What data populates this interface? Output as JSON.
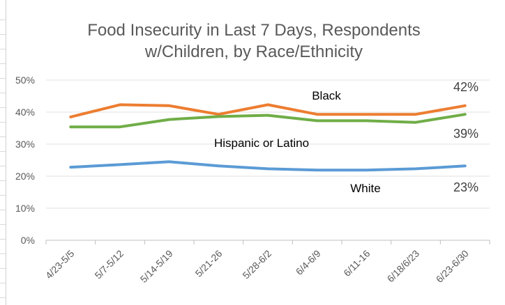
{
  "chart_data": {
    "type": "line",
    "title_line1": "Food Insecurity in Last 7 Days, Respondents",
    "title_line2": "w/Children, by Race/Ethnicity",
    "xlabel": "",
    "ylabel": "",
    "categories": [
      "4/23-5/5",
      "5/7-5/12",
      "5/14-5/19",
      "5/21-26",
      "5/28-6/2",
      "6/4-6/9",
      "6/11-16",
      "6/18/6/23",
      "6/23-6/30"
    ],
    "ylim": [
      0,
      50
    ],
    "yticks": [
      "0%",
      "10%",
      "20%",
      "30%",
      "40%",
      "50%"
    ],
    "grid": true,
    "legend": "none",
    "series": [
      {
        "name": "Black",
        "color": "#ed7d31",
        "values": [
          38.5,
          42.3,
          42.0,
          39.3,
          42.3,
          39.3,
          39.3,
          39.3,
          42.0
        ],
        "end_label": "42%"
      },
      {
        "name": "Hispanic or Latino",
        "color": "#70ad47",
        "values": [
          35.4,
          35.4,
          37.7,
          38.6,
          39.0,
          37.3,
          37.3,
          36.8,
          39.3
        ],
        "end_label": "39%"
      },
      {
        "name": "White",
        "color": "#5b9bd5",
        "values": [
          22.8,
          23.6,
          24.5,
          23.2,
          22.3,
          21.9,
          21.9,
          22.3,
          23.2
        ],
        "end_label": "23%"
      }
    ]
  }
}
